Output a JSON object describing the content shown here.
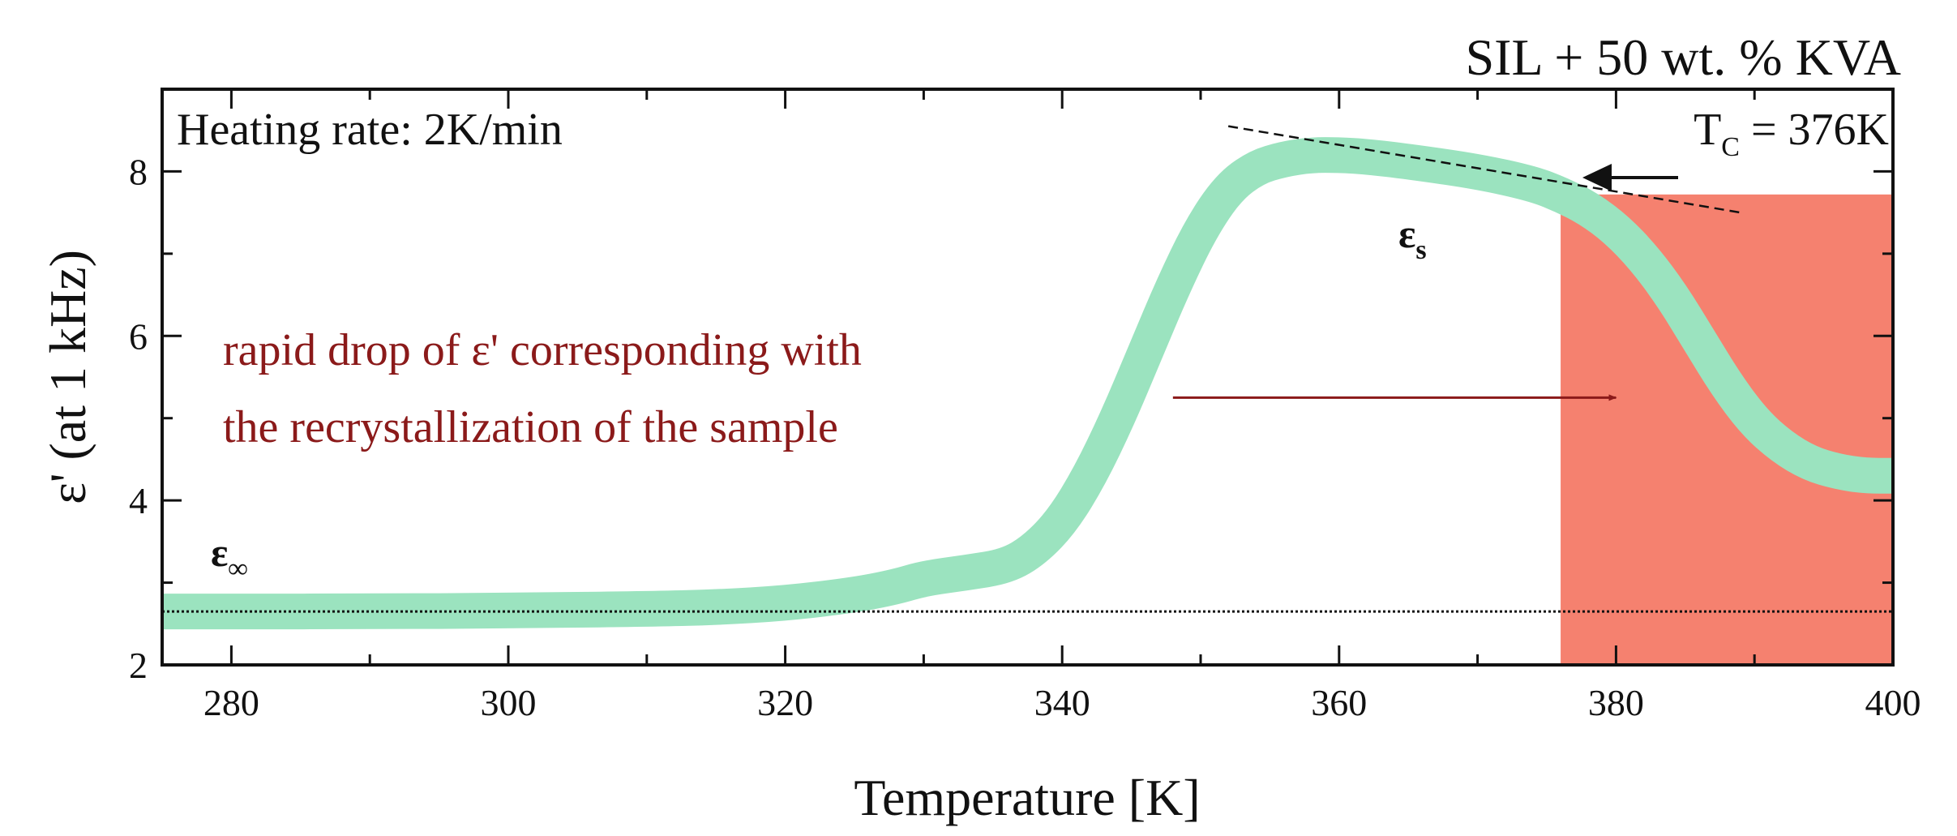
{
  "chart_data": {
    "type": "line",
    "title": "SIL + 50 wt. % KVA",
    "xlabel": "Temperature [K]",
    "ylabel": "ε' (at 1 kHz)",
    "xlim": [
      275,
      400
    ],
    "ylim": [
      2,
      9
    ],
    "xticks": [
      280,
      300,
      320,
      340,
      360,
      380,
      400
    ],
    "yticks": [
      2,
      4,
      6,
      8
    ],
    "grid": false,
    "series": [
      {
        "name": "ε' at 1 kHz",
        "color": "#9be3bf",
        "x": [
          275,
          280,
          290,
          300,
          310,
          315,
          320,
          325,
          328,
          330,
          333,
          336,
          338,
          340,
          342,
          344,
          346,
          348,
          350,
          352,
          354,
          356,
          358,
          360,
          362,
          365,
          370,
          374,
          376,
          378,
          380,
          382,
          384,
          386,
          388,
          390,
          392,
          394,
          396,
          398,
          400
        ],
        "y": [
          2.65,
          2.65,
          2.65,
          2.66,
          2.68,
          2.7,
          2.75,
          2.85,
          2.95,
          3.05,
          3.12,
          3.2,
          3.4,
          3.75,
          4.3,
          5.0,
          5.8,
          6.6,
          7.3,
          7.8,
          8.05,
          8.15,
          8.2,
          8.2,
          8.18,
          8.12,
          8.0,
          7.85,
          7.72,
          7.55,
          7.3,
          6.95,
          6.5,
          5.95,
          5.4,
          4.95,
          4.65,
          4.45,
          4.35,
          4.3,
          4.3
        ]
      }
    ],
    "eps_inf_level": 2.65,
    "tangent_line": {
      "x": [
        352,
        389
      ],
      "y": [
        8.55,
        7.5
      ]
    },
    "shaded_region": {
      "x_start": 376,
      "x_end": 400,
      "color": "#f5816f"
    },
    "annotation_arrow": {
      "from": [
        348,
        5.25
      ],
      "to": [
        380,
        5.25
      ]
    }
  },
  "annotations": {
    "heating_rate": "Heating rate: 2K/min",
    "tc_main": "T",
    "tc_sub": "C",
    "tc_value": " = 376K",
    "eps_s_main": "ε",
    "eps_s_sub": "s",
    "eps_inf_main": "ε",
    "eps_inf_sub": "∞",
    "drop_line1": "rapid drop of ε' corresponding with",
    "drop_line2": "the recrystallization of the sample"
  }
}
